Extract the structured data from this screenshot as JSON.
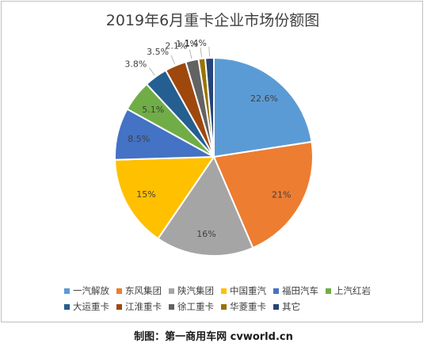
{
  "chart_data": {
    "type": "pie",
    "title": "2019年6月重卡企业市场份额图",
    "slices": [
      {
        "name": "一汽解放",
        "value": 22.6,
        "label": "22.6%",
        "color": "#5b9bd5"
      },
      {
        "name": "东风集团",
        "value": 21,
        "label": "21%",
        "color": "#ed7d31"
      },
      {
        "name": "陕汽集团",
        "value": 16,
        "label": "16%",
        "color": "#a5a5a5"
      },
      {
        "name": "中国重汽",
        "value": 15,
        "label": "15%",
        "color": "#ffc000"
      },
      {
        "name": "福田汽车",
        "value": 8.5,
        "label": "8.5%",
        "color": "#4472c4"
      },
      {
        "name": "上汽红岩",
        "value": 5.1,
        "label": "5.1%",
        "color": "#70ad47"
      },
      {
        "name": "大运重卡",
        "value": 3.8,
        "label": "3.8%",
        "color": "#255e91"
      },
      {
        "name": "江淮重卡",
        "value": 3.5,
        "label": "3.5%",
        "color": "#9e480e"
      },
      {
        "name": "徐工重卡",
        "value": 2.1,
        "label": "2.1%",
        "color": "#636363"
      },
      {
        "name": "华菱重卡",
        "value": 1.1,
        "label": "1.1%",
        "color": "#997300"
      },
      {
        "name": "其它",
        "value": 1.4,
        "label": "1.4%",
        "color": "#264478"
      }
    ],
    "legend_position": "bottom"
  },
  "caption": "制图：第一商用车网 cvworld.cn"
}
